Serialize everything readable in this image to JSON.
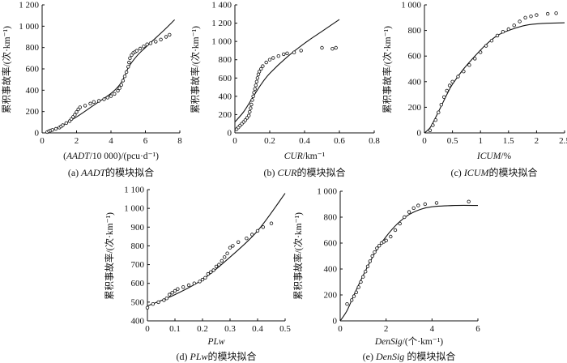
{
  "chart_data": [
    {
      "id": "a",
      "type": "scatter",
      "caption_prefix": "(a) ",
      "caption_italic": "AADT",
      "caption_suffix": "的模块拟合",
      "xlabel_prefix": "(",
      "xlabel_italic": "AADT",
      "xlabel_suffix": "/10 000)/(pcu·d⁻¹)",
      "ylabel": "累积事故率/(次·km⁻¹)",
      "xlim": [
        0,
        8
      ],
      "ylim": [
        0,
        1200
      ],
      "xticks": [
        0,
        2,
        4,
        6,
        8
      ],
      "yticks": [
        0,
        200,
        400,
        600,
        800,
        1000,
        1200
      ],
      "ytick_labels": [
        "0",
        "200",
        "400",
        "600",
        "800",
        "1 000",
        "1 200"
      ],
      "points": [
        [
          0.3,
          8
        ],
        [
          0.4,
          15
        ],
        [
          0.5,
          22
        ],
        [
          0.6,
          28
        ],
        [
          0.8,
          38
        ],
        [
          1,
          50
        ],
        [
          1.1,
          60
        ],
        [
          1.2,
          72
        ],
        [
          1.4,
          92
        ],
        [
          1.6,
          110
        ],
        [
          1.7,
          130
        ],
        [
          1.8,
          150
        ],
        [
          1.9,
          170
        ],
        [
          2,
          195
        ],
        [
          2.1,
          220
        ],
        [
          2.2,
          240
        ],
        [
          2.5,
          255
        ],
        [
          2.8,
          275
        ],
        [
          3,
          290
        ],
        [
          3.3,
          300
        ],
        [
          3.6,
          315
        ],
        [
          3.8,
          330
        ],
        [
          4,
          345
        ],
        [
          4.2,
          365
        ],
        [
          4.4,
          395
        ],
        [
          4.5,
          420
        ],
        [
          4.6,
          450
        ],
        [
          4.7,
          490
        ],
        [
          4.8,
          530
        ],
        [
          4.9,
          570
        ],
        [
          5,
          620
        ],
        [
          5.05,
          660
        ],
        [
          5.1,
          700
        ],
        [
          5.2,
          730
        ],
        [
          5.3,
          750
        ],
        [
          5.4,
          760
        ],
        [
          5.5,
          770
        ],
        [
          5.7,
          790
        ],
        [
          5.9,
          810
        ],
        [
          6.1,
          830
        ],
        [
          6.3,
          840
        ],
        [
          6.6,
          855
        ],
        [
          6.9,
          875
        ],
        [
          7.2,
          900
        ],
        [
          7.4,
          920
        ]
      ],
      "curve": [
        [
          0.3,
          5
        ],
        [
          1,
          55
        ],
        [
          2,
          150
        ],
        [
          3,
          260
        ],
        [
          4,
          370
        ],
        [
          4.5,
          450
        ],
        [
          4.8,
          530
        ],
        [
          5,
          610
        ],
        [
          5.5,
          720
        ],
        [
          6,
          800
        ],
        [
          7,
          950
        ],
        [
          7.7,
          1060
        ]
      ]
    },
    {
      "id": "b",
      "type": "scatter",
      "caption_prefix": "(b) ",
      "caption_italic": "CUR",
      "caption_suffix": "的模块拟合",
      "xlabel_prefix": "",
      "xlabel_italic": "CUR",
      "xlabel_suffix": "/km⁻¹",
      "ylabel": "累积事故率/(次·km⁻¹)",
      "xlim": [
        0,
        0.8
      ],
      "ylim": [
        0,
        1400
      ],
      "xticks": [
        0,
        0.2,
        0.4,
        0.6,
        0.8
      ],
      "yticks": [
        0,
        200,
        400,
        600,
        800,
        1000,
        1200,
        1400
      ],
      "ytick_labels": [
        "0",
        "200",
        "400",
        "600",
        "800",
        "1 000",
        "1 200",
        "1 400"
      ],
      "points": [
        [
          0.01,
          40
        ],
        [
          0.02,
          60
        ],
        [
          0.03,
          80
        ],
        [
          0.04,
          100
        ],
        [
          0.05,
          120
        ],
        [
          0.06,
          140
        ],
        [
          0.07,
          165
        ],
        [
          0.08,
          190
        ],
        [
          0.085,
          230
        ],
        [
          0.09,
          270
        ],
        [
          0.095,
          310
        ],
        [
          0.1,
          360
        ],
        [
          0.105,
          400
        ],
        [
          0.11,
          440
        ],
        [
          0.115,
          480
        ],
        [
          0.12,
          520
        ],
        [
          0.125,
          560
        ],
        [
          0.13,
          600
        ],
        [
          0.135,
          640
        ],
        [
          0.14,
          670
        ],
        [
          0.15,
          700
        ],
        [
          0.16,
          730
        ],
        [
          0.18,
          770
        ],
        [
          0.2,
          800
        ],
        [
          0.22,
          820
        ],
        [
          0.25,
          840
        ],
        [
          0.28,
          860
        ],
        [
          0.3,
          870
        ],
        [
          0.34,
          880
        ],
        [
          0.38,
          900
        ],
        [
          0.5,
          930
        ],
        [
          0.56,
          920
        ],
        [
          0.58,
          930
        ]
      ],
      "curve": [
        [
          0,
          120
        ],
        [
          0.05,
          230
        ],
        [
          0.1,
          380
        ],
        [
          0.15,
          530
        ],
        [
          0.2,
          650
        ],
        [
          0.3,
          830
        ],
        [
          0.4,
          980
        ],
        [
          0.5,
          1110
        ],
        [
          0.6,
          1240
        ]
      ]
    },
    {
      "id": "c",
      "type": "scatter",
      "caption_prefix": "(c) ",
      "caption_italic": "ICUM",
      "caption_suffix": "的模块拟合",
      "xlabel_prefix": "",
      "xlabel_italic": "ICUM",
      "xlabel_suffix": "/%",
      "ylabel": "累积事故率/(次·km⁻¹)",
      "xlim": [
        0,
        2.5
      ],
      "ylim": [
        0,
        1000
      ],
      "xticks": [
        0,
        0.5,
        1,
        1.5,
        2,
        2.5
      ],
      "yticks": [
        0,
        200,
        400,
        600,
        800,
        1000
      ],
      "ytick_labels": [
        "0",
        "200",
        "400",
        "600",
        "800",
        "1 000"
      ],
      "points": [
        [
          0.1,
          20
        ],
        [
          0.15,
          60
        ],
        [
          0.2,
          100
        ],
        [
          0.25,
          160
        ],
        [
          0.3,
          220
        ],
        [
          0.35,
          280
        ],
        [
          0.4,
          330
        ],
        [
          0.45,
          370
        ],
        [
          0.5,
          400
        ],
        [
          0.6,
          440
        ],
        [
          0.7,
          480
        ],
        [
          0.8,
          530
        ],
        [
          0.9,
          580
        ],
        [
          1,
          630
        ],
        [
          1.1,
          680
        ],
        [
          1.2,
          720
        ],
        [
          1.3,
          760
        ],
        [
          1.4,
          790
        ],
        [
          1.5,
          810
        ],
        [
          1.6,
          840
        ],
        [
          1.7,
          870
        ],
        [
          1.8,
          900
        ],
        [
          1.9,
          910
        ],
        [
          2,
          920
        ],
        [
          2.2,
          930
        ],
        [
          2.35,
          935
        ]
      ],
      "curve": [
        [
          0,
          0
        ],
        [
          0.1,
          40
        ],
        [
          0.2,
          120
        ],
        [
          0.3,
          210
        ],
        [
          0.4,
          300
        ],
        [
          0.5,
          380
        ],
        [
          0.7,
          500
        ],
        [
          0.9,
          600
        ],
        [
          1.1,
          690
        ],
        [
          1.3,
          760
        ],
        [
          1.5,
          800
        ],
        [
          1.8,
          840
        ],
        [
          2.1,
          855
        ],
        [
          2.5,
          860
        ]
      ]
    },
    {
      "id": "d",
      "type": "scatter",
      "caption_prefix": "(d) ",
      "caption_italic": "PLw",
      "caption_suffix": "的模块拟合",
      "xlabel_prefix": "",
      "xlabel_italic": "PLw",
      "xlabel_suffix": "",
      "ylabel": "累积事故率/(次·km⁻¹)",
      "xlim": [
        0,
        0.5
      ],
      "ylim": [
        400,
        1100
      ],
      "xticks": [
        0,
        0.1,
        0.2,
        0.3,
        0.4,
        0.5
      ],
      "yticks": [
        400,
        500,
        600,
        700,
        800,
        900,
        1000,
        1100
      ],
      "ytick_labels": [
        "400",
        "500",
        "600",
        "700",
        "800",
        "900",
        "1 000",
        "1 100"
      ],
      "points": [
        [
          0,
          470
        ],
        [
          0.02,
          490
        ],
        [
          0.04,
          500
        ],
        [
          0.06,
          510
        ],
        [
          0.07,
          520
        ],
        [
          0.08,
          540
        ],
        [
          0.09,
          550
        ],
        [
          0.1,
          560
        ],
        [
          0.11,
          570
        ],
        [
          0.13,
          580
        ],
        [
          0.15,
          590
        ],
        [
          0.17,
          600
        ],
        [
          0.19,
          610
        ],
        [
          0.2,
          620
        ],
        [
          0.21,
          630
        ],
        [
          0.22,
          650
        ],
        [
          0.23,
          660
        ],
        [
          0.24,
          670
        ],
        [
          0.25,
          690
        ],
        [
          0.26,
          700
        ],
        [
          0.27,
          720
        ],
        [
          0.28,
          740
        ],
        [
          0.29,
          760
        ],
        [
          0.3,
          790
        ],
        [
          0.31,
          800
        ],
        [
          0.33,
          820
        ],
        [
          0.36,
          840
        ],
        [
          0.38,
          860
        ],
        [
          0.4,
          880
        ],
        [
          0.42,
          900
        ],
        [
          0.45,
          920
        ]
      ],
      "curve": [
        [
          0,
          480
        ],
        [
          0.1,
          540
        ],
        [
          0.2,
          620
        ],
        [
          0.3,
          740
        ],
        [
          0.4,
          880
        ],
        [
          0.5,
          1080
        ]
      ]
    },
    {
      "id": "e",
      "type": "scatter",
      "caption_prefix": "(e) ",
      "caption_italic": "DenSig",
      "caption_suffix": " 的模块拟合",
      "xlabel_prefix": "",
      "xlabel_italic": "DenSig",
      "xlabel_suffix": "/(个·km⁻¹)",
      "ylabel": "累积事故率/(次·km⁻¹)",
      "xlim": [
        0,
        6
      ],
      "ylim": [
        0,
        1000
      ],
      "xticks": [
        0,
        2,
        4,
        6
      ],
      "yticks": [
        0,
        200,
        400,
        600,
        800,
        1000
      ],
      "ytick_labels": [
        "0",
        "200",
        "400",
        "600",
        "800",
        "1 000"
      ],
      "points": [
        [
          0.3,
          130
        ],
        [
          0.5,
          160
        ],
        [
          0.6,
          190
        ],
        [
          0.7,
          220
        ],
        [
          0.8,
          260
        ],
        [
          0.9,
          300
        ],
        [
          1,
          340
        ],
        [
          1.1,
          380
        ],
        [
          1.2,
          420
        ],
        [
          1.3,
          460
        ],
        [
          1.4,
          500
        ],
        [
          1.5,
          530
        ],
        [
          1.6,
          560
        ],
        [
          1.7,
          580
        ],
        [
          1.8,
          600
        ],
        [
          1.9,
          610
        ],
        [
          2,
          620
        ],
        [
          2.2,
          650
        ],
        [
          2.4,
          700
        ],
        [
          2.6,
          750
        ],
        [
          2.8,
          800
        ],
        [
          3,
          840
        ],
        [
          3.2,
          870
        ],
        [
          3.4,
          890
        ],
        [
          3.7,
          900
        ],
        [
          4.2,
          910
        ],
        [
          5.6,
          920
        ]
      ],
      "curve": [
        [
          0,
          0
        ],
        [
          0.3,
          80
        ],
        [
          0.6,
          200
        ],
        [
          1,
          350
        ],
        [
          1.5,
          520
        ],
        [
          2,
          650
        ],
        [
          2.5,
          750
        ],
        [
          3,
          820
        ],
        [
          3.5,
          860
        ],
        [
          4,
          880
        ],
        [
          5,
          890
        ],
        [
          6,
          890
        ]
      ]
    }
  ]
}
